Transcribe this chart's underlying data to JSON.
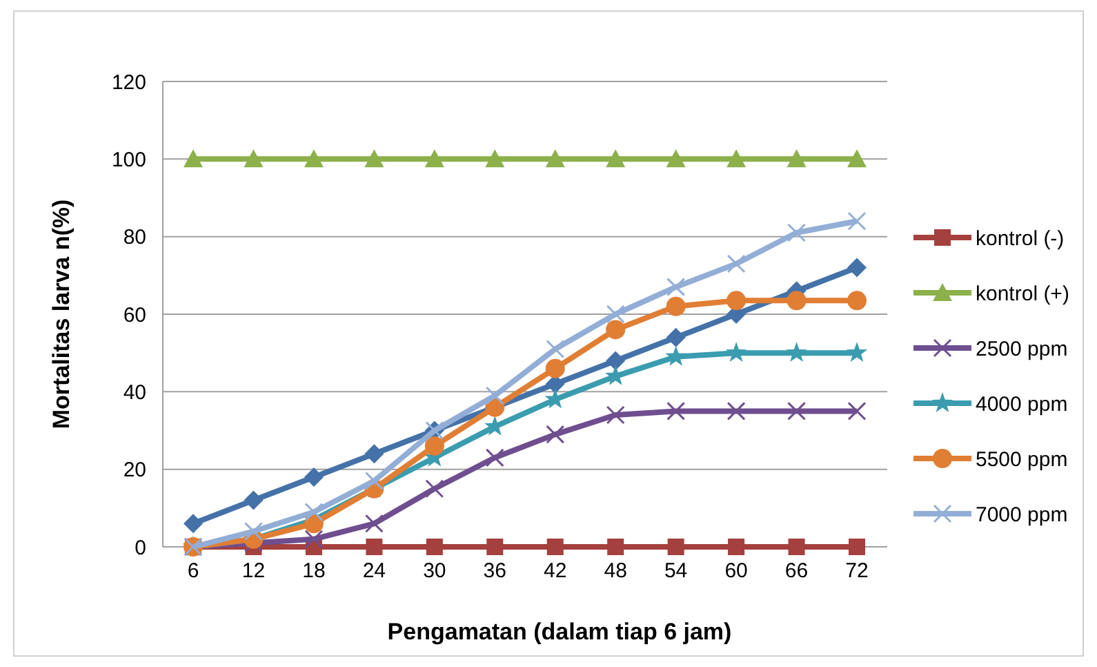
{
  "chart_data": {
    "type": "line",
    "xlabel": "Pengamatan (dalam tiap 6 jam)",
    "ylabel": "Mortalitas larva n(%)",
    "categories": [
      "6",
      "12",
      "18",
      "24",
      "30",
      "36",
      "42",
      "48",
      "54",
      "60",
      "66",
      "72"
    ],
    "ylim": [
      0,
      120
    ],
    "yticks": [
      0,
      20,
      40,
      60,
      80,
      100,
      120
    ],
    "grid": "y",
    "legend": "right",
    "series": [
      {
        "color": "#4472a8",
        "marker": "diamond",
        "values": [
          6,
          12,
          18,
          24,
          30,
          36,
          42,
          48,
          54,
          60,
          66,
          72
        ]
      },
      {
        "name": "kontrol (-)",
        "color": "#a4403d",
        "marker": "square",
        "values": [
          0,
          0,
          0,
          0,
          0,
          0,
          0,
          0,
          0,
          0,
          0,
          0
        ]
      },
      {
        "name": "kontrol (+)",
        "color": "#8cb04a",
        "marker": "triangle",
        "values": [
          100,
          100,
          100,
          100,
          100,
          100,
          100,
          100,
          100,
          100,
          100,
          100
        ]
      },
      {
        "name": "2500 ppm",
        "color": "#6f4e8f",
        "marker": "cross",
        "values": [
          0,
          1,
          2,
          6,
          15,
          23,
          29,
          34,
          35,
          35,
          35,
          35
        ]
      },
      {
        "name": "4000 ppm",
        "color": "#3b9cb0",
        "marker": "star",
        "values": [
          0,
          2,
          7,
          15,
          23,
          31,
          38,
          44,
          49,
          50,
          50,
          50
        ]
      },
      {
        "name": "5500 ppm",
        "color": "#e07e34",
        "marker": "circle",
        "values": [
          0,
          2,
          6,
          15,
          26,
          36,
          46,
          56,
          62,
          63.5,
          63.5,
          63.5
        ]
      },
      {
        "name": "7000 ppm",
        "color": "#93aed6",
        "marker": "cross",
        "values": [
          0,
          4,
          9,
          17,
          30,
          39,
          51,
          60,
          67,
          73,
          81,
          84
        ]
      }
    ]
  }
}
